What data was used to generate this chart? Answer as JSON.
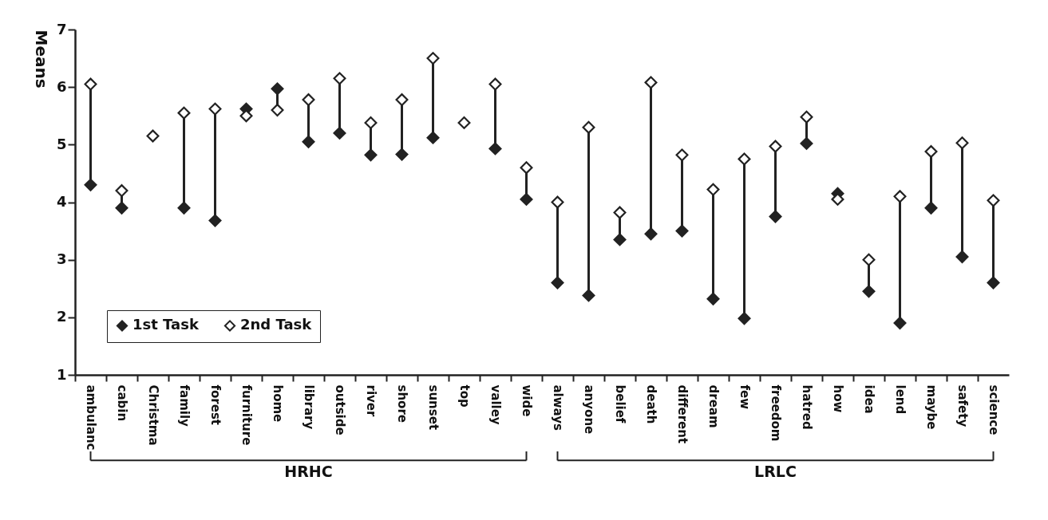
{
  "chart_data": {
    "type": "scatter",
    "ylabel": "Means",
    "categories": [
      "ambulanc",
      "cabin",
      "Christma",
      "family",
      "forest",
      "furniture",
      "home",
      "library",
      "outside",
      "river",
      "shore",
      "sunset",
      "top",
      "valley",
      "wide",
      "always",
      "anyone",
      "belief",
      "death",
      "different",
      "dream",
      "few",
      "freedom",
      "hatred",
      "how",
      "idea",
      "lend",
      "maybe",
      "safety",
      "science"
    ],
    "series": [
      {
        "name": "1st Task",
        "color": "#222222",
        "values": [
          4.3,
          3.9,
          null,
          3.9,
          3.68,
          5.62,
          5.97,
          5.05,
          5.2,
          4.82,
          4.83,
          5.12,
          null,
          4.93,
          4.05,
          2.6,
          2.38,
          3.35,
          3.45,
          3.5,
          2.32,
          1.98,
          3.75,
          5.02,
          4.15,
          2.45,
          1.9,
          3.9,
          3.05,
          2.6
        ]
      },
      {
        "name": "2nd Task",
        "color": "#ffffff",
        "values": [
          6.05,
          4.2,
          5.15,
          5.55,
          5.62,
          5.5,
          5.6,
          5.78,
          6.15,
          5.38,
          5.78,
          6.5,
          5.38,
          6.05,
          4.6,
          4.0,
          5.3,
          3.82,
          6.08,
          4.82,
          4.22,
          4.75,
          4.97,
          5.48,
          4.05,
          3.0,
          4.1,
          4.88,
          5.03,
          4.03
        ]
      }
    ],
    "marker": "diamond",
    "ylim": [
      1,
      7
    ],
    "yticks": [
      1,
      2,
      3,
      4,
      5,
      6,
      7
    ],
    "legend": "bottom left",
    "annotations": [
      "HRHC",
      "LRLC"
    ]
  }
}
